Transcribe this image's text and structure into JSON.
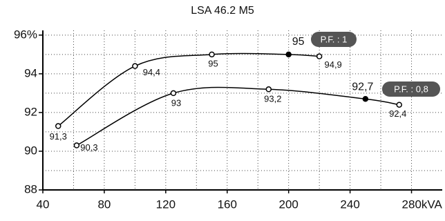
{
  "chart_data": {
    "type": "line",
    "title": "LSA 46.2 M5",
    "xlim": [
      40,
      300
    ],
    "ylim": [
      88,
      96.6
    ],
    "xticks": [
      40,
      80,
      120,
      160,
      200,
      240,
      {
        "value": 280,
        "label": "280kVA"
      }
    ],
    "yticks": [
      88,
      90,
      92,
      94,
      {
        "value": 96,
        "label": "96%"
      }
    ],
    "grid": true,
    "series": [
      {
        "name": "P.F. : 1",
        "color": "#000000",
        "filled": 3,
        "x": [
          50,
          100,
          150,
          200,
          220
        ],
        "values": [
          91.3,
          94.4,
          95,
          95,
          94.9
        ],
        "value_labels": [
          "91,3",
          "94,4",
          "95",
          "95",
          "94,9"
        ]
      },
      {
        "name": "P.F. : 0,8",
        "color": "#000000",
        "filled": 3,
        "x": [
          62,
          125,
          187,
          250,
          272
        ],
        "values": [
          90.3,
          93,
          93.2,
          92.7,
          92.4
        ],
        "value_labels": [
          "90,3",
          "93",
          "93,2",
          "92,7",
          "92,4"
        ]
      }
    ]
  }
}
